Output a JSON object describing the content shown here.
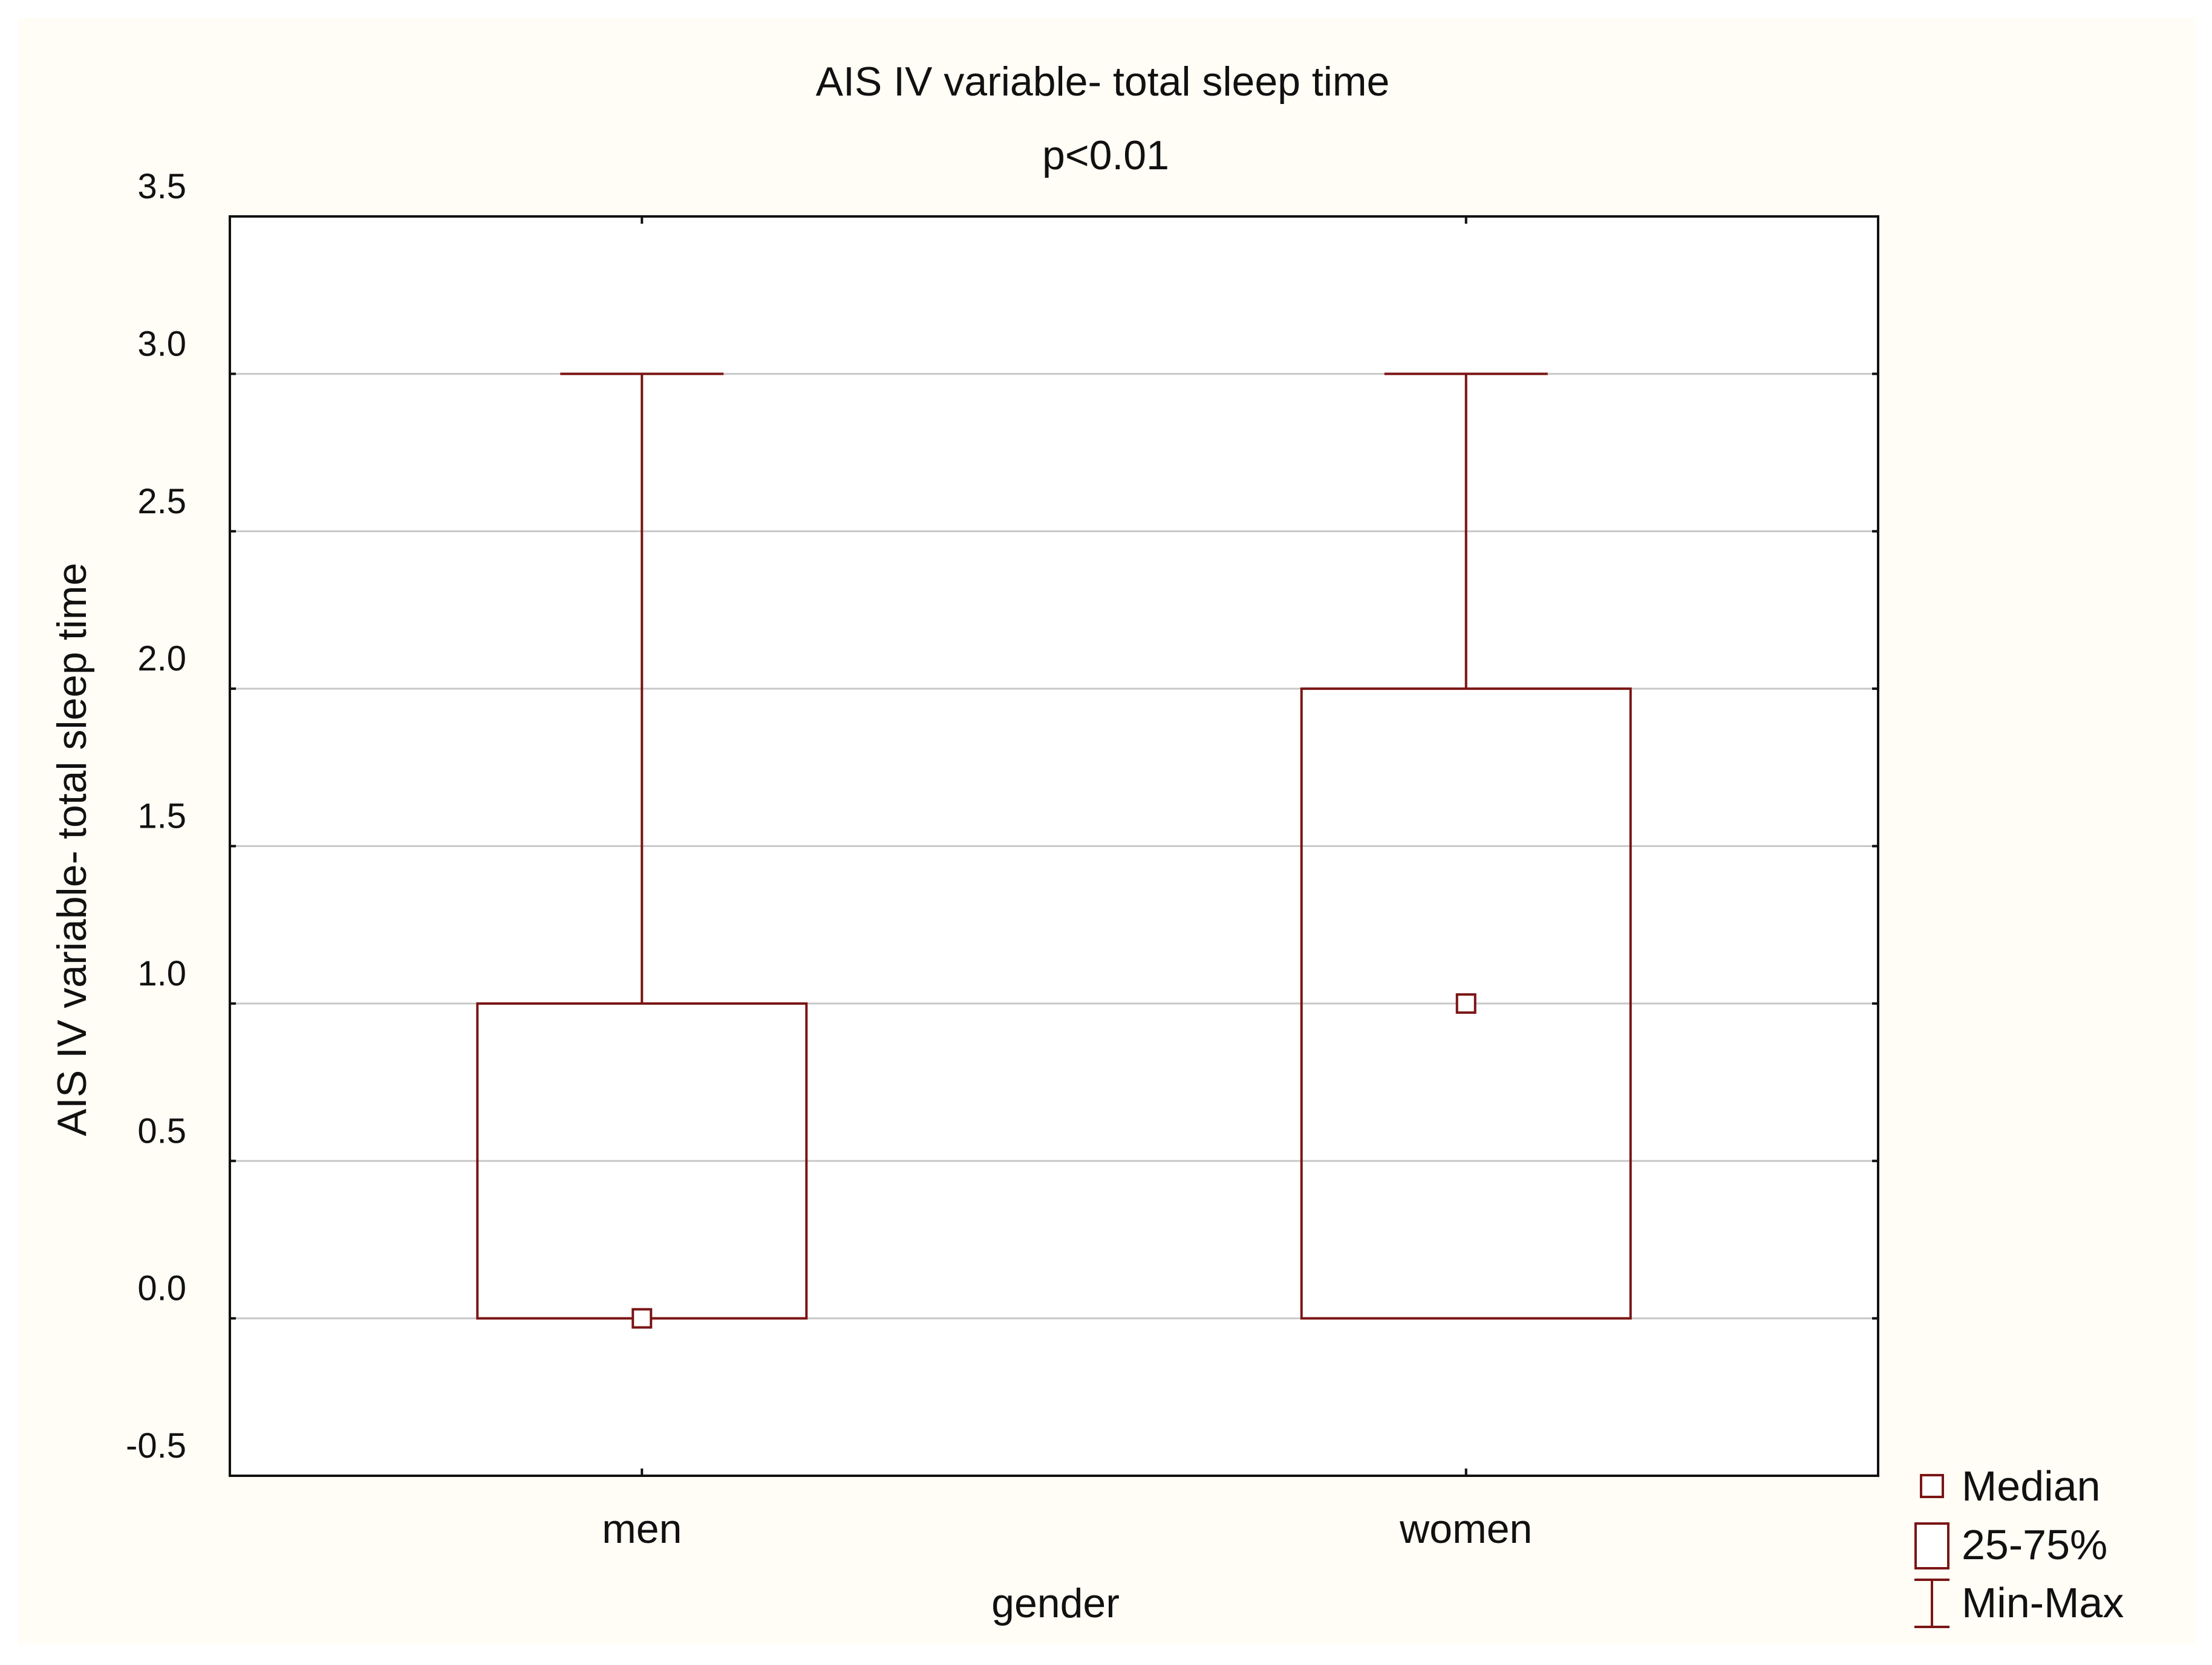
{
  "chart_data": {
    "type": "boxplot",
    "title": "AIS IV variable- total sleep time",
    "subtitle": "p<0.01",
    "xlabel": "gender",
    "ylabel": "AIS IV variable- total sleep time",
    "categories": [
      "men",
      "women"
    ],
    "yticks": [
      "-0.5",
      "0.0",
      "0.5",
      "1.0",
      "1.5",
      "2.0",
      "2.5",
      "3.0",
      "3.5"
    ],
    "ylim": [
      -0.5,
      3.5
    ],
    "grid": true,
    "boxes": [
      {
        "category": "men",
        "min": 0,
        "q1": 0,
        "median": 0,
        "q3": 1,
        "max": 3
      },
      {
        "category": "women",
        "min": 0,
        "q1": 0,
        "median": 1,
        "q3": 2,
        "max": 3
      }
    ],
    "legend": {
      "placement": "bottom-right",
      "items": [
        {
          "symbol": "median",
          "label": "Median"
        },
        {
          "symbol": "box",
          "label": "25-75%"
        },
        {
          "symbol": "whisker",
          "label": "Min-Max"
        }
      ]
    },
    "colors": {
      "background": "#fffdf5",
      "plot": "#ffffff",
      "series": "#7b1515",
      "grid": "#c8c8c8",
      "axis": "#111111"
    }
  }
}
